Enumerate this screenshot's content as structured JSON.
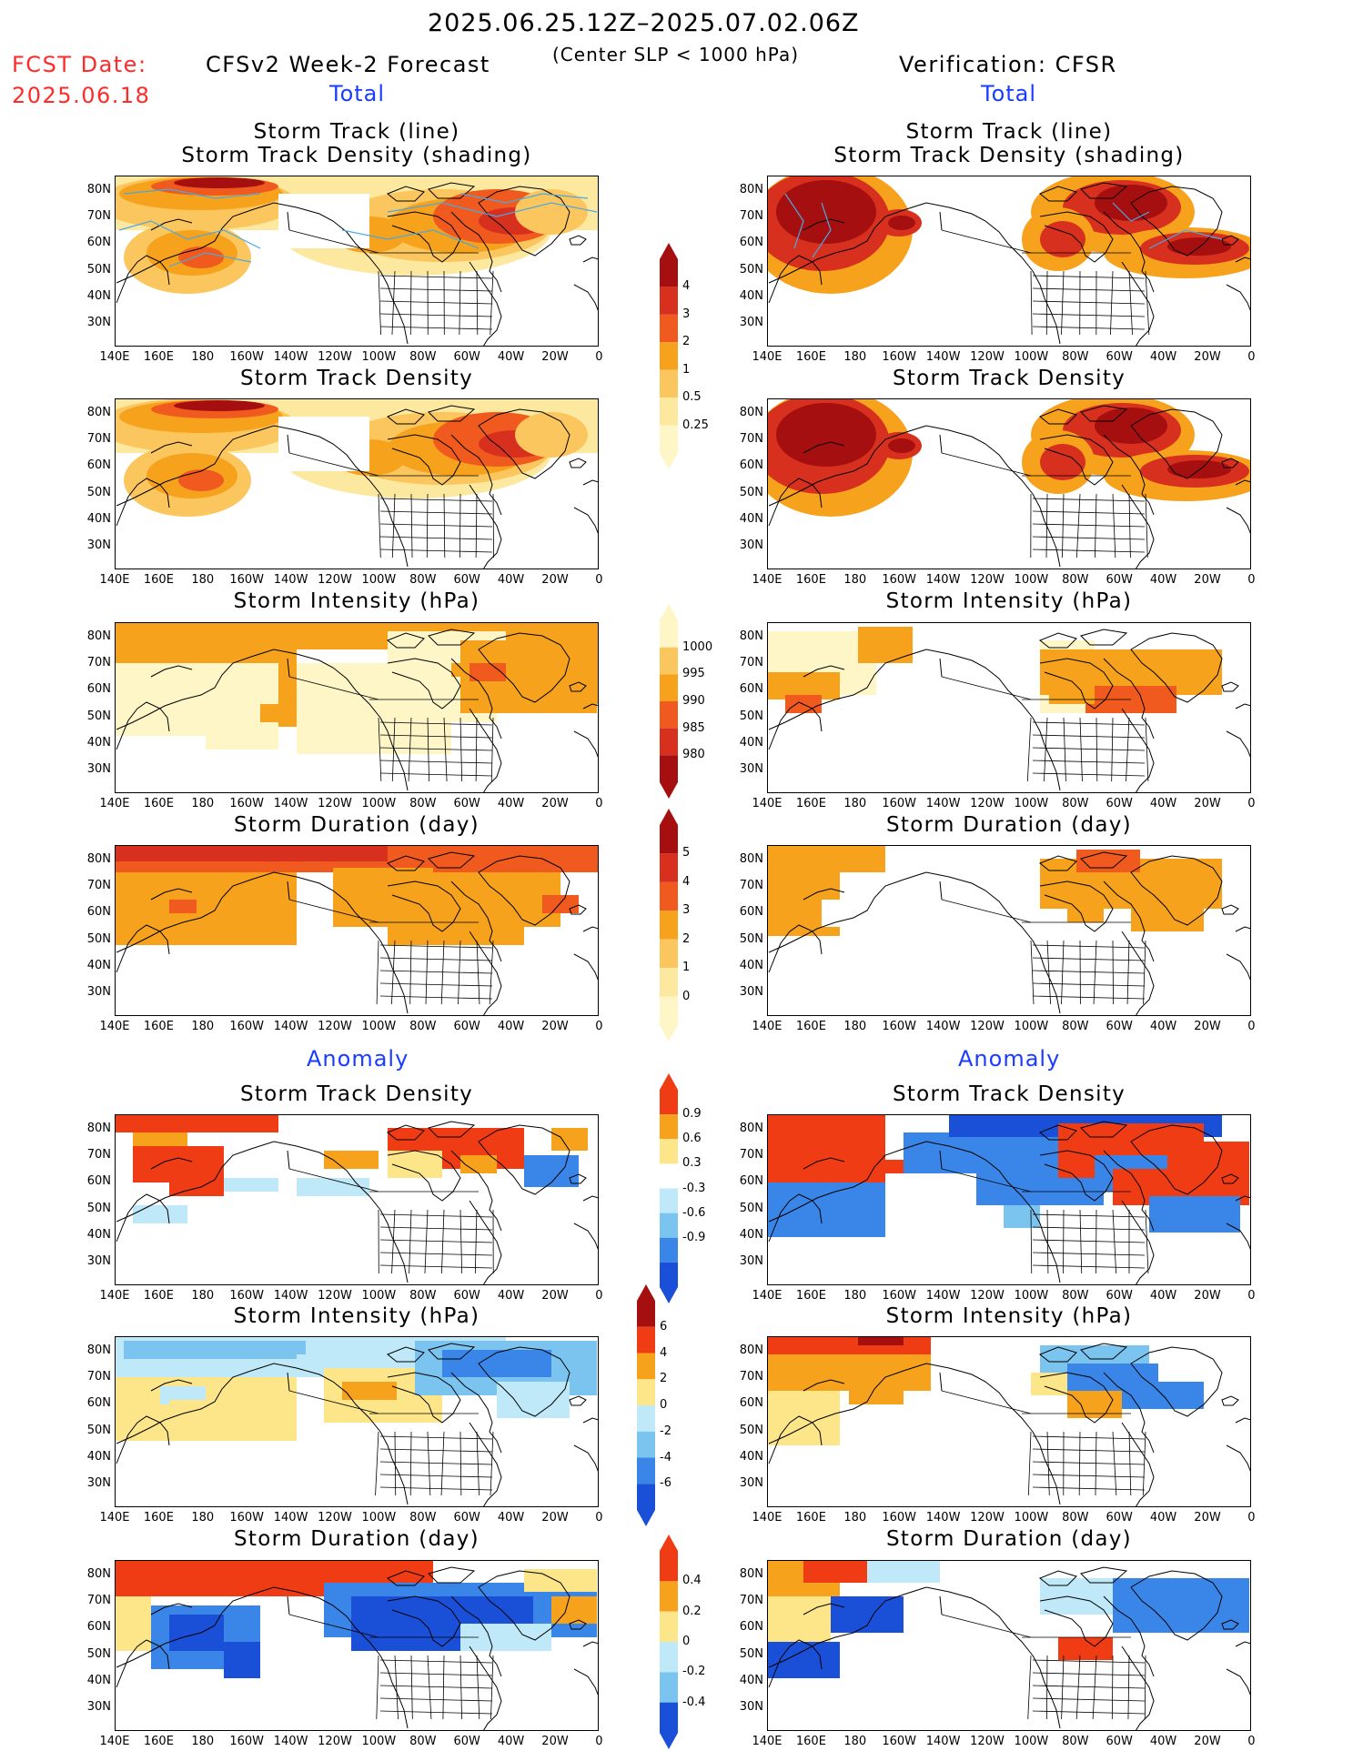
{
  "header": {
    "date_range": "2025.06.25.12Z–2025.07.02.06Z",
    "criterion": "(Center SLP < 1000 hPa)",
    "fcst_label": "FCST Date:",
    "fcst_date": "2025.06.18",
    "model": "CFSv2 Week-2 Forecast",
    "verification": "Verification: CFSR"
  },
  "sections": {
    "total_left": "Total",
    "total_right": "Total",
    "anomaly_left": "Anomaly",
    "anomaly_right": "Anomaly"
  },
  "panel_titles": {
    "track_line": "Storm Track (line)",
    "track_shading": "Storm Track Density (shading)",
    "density": "Storm Track Density",
    "intensity": "Storm Intensity (hPa)",
    "duration": "Storm Duration (day)"
  },
  "axes": {
    "lat_labels": [
      "80N",
      "70N",
      "60N",
      "50N",
      "40N",
      "30N"
    ],
    "lon_labels": [
      "140E",
      "160E",
      "180",
      "160W",
      "140W",
      "120W",
      "100W",
      "80W",
      "60W",
      "40W",
      "20W",
      "0"
    ]
  },
  "colorbars": {
    "density": {
      "labels": [
        "4",
        "3",
        "2",
        "1",
        "0.5",
        "0.25"
      ],
      "colors": [
        "#a50f0f",
        "#d7301f",
        "#f05a1e",
        "#f6a21c",
        "#fbc65e",
        "#fde8a0",
        "#fff6c8"
      ]
    },
    "intensity": {
      "labels": [
        "1000",
        "995",
        "990",
        "985",
        "980"
      ],
      "colors": [
        "#fff6c8",
        "#fbc65e",
        "#f6a21c",
        "#f05a1e",
        "#d7301f",
        "#a50f0f"
      ]
    },
    "duration": {
      "labels": [
        "5",
        "4",
        "3",
        "2",
        "1",
        "0"
      ],
      "colors": [
        "#a50f0f",
        "#d7301f",
        "#f05a1e",
        "#f6a21c",
        "#fbc65e",
        "#fde8a0",
        "#fff6c8"
      ]
    },
    "anom_density": {
      "labels": [
        "0.9",
        "0.6",
        "0.3",
        "-0.3",
        "-0.6",
        "-0.9"
      ],
      "colors": [
        "#f03c14",
        "#f6a21c",
        "#fde68a",
        "#ffffff",
        "#bfe8f8",
        "#7cc4f0",
        "#3a86e8",
        "#1a4fd8"
      ]
    },
    "anom_intensity": {
      "labels": [
        "6",
        "4",
        "2",
        "0",
        "-2",
        "-4",
        "-6"
      ],
      "colors": [
        "#a50f0f",
        "#f03c14",
        "#f6a21c",
        "#fde68a",
        "#bfe8f8",
        "#7cc4f0",
        "#3a86e8",
        "#1a4fd8"
      ]
    },
    "anom_duration": {
      "labels": [
        "0.4",
        "0.2",
        "0",
        "-0.2",
        "-0.4"
      ],
      "colors": [
        "#f03c14",
        "#f6a21c",
        "#fde68a",
        "#bfe8f8",
        "#7cc4f0",
        "#1a4fd8"
      ]
    }
  }
}
